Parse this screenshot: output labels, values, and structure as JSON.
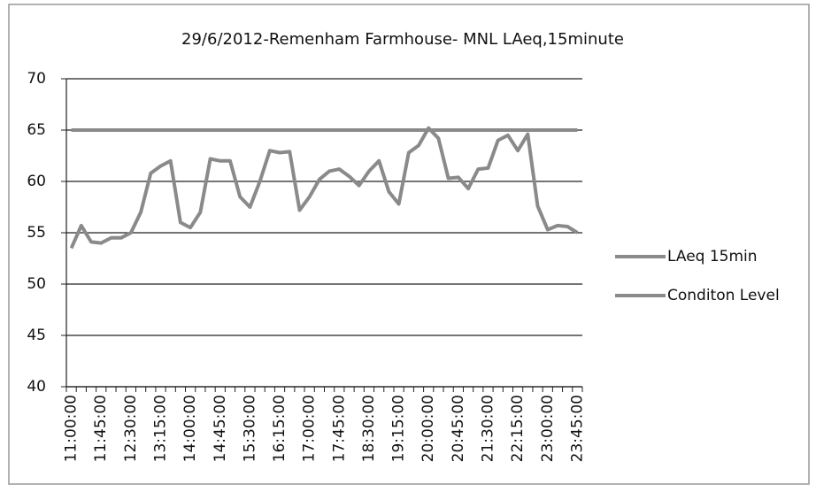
{
  "chart_data": {
    "type": "line",
    "title": "29/6/2012-Remenham Farmhouse- MNL LAeq,15minute",
    "categories": [
      "11:00:00",
      null,
      null,
      "11:45:00",
      null,
      null,
      "12:30:00",
      null,
      null,
      "13:15:00",
      null,
      null,
      "14:00:00",
      null,
      null,
      "14:45:00",
      null,
      null,
      "15:30:00",
      null,
      null,
      "16:15:00",
      null,
      null,
      "17:00:00",
      null,
      null,
      "17:45:00",
      null,
      null,
      "18:30:00",
      null,
      null,
      "19:15:00",
      null,
      null,
      "20:00:00",
      null,
      null,
      "20:45:00",
      null,
      null,
      "21:30:00",
      null,
      null,
      "22:15:00",
      null,
      null,
      "23:00:00",
      null,
      null,
      "23:45:00"
    ],
    "series": [
      {
        "name": "LAeq 15min",
        "color": "#8a8a8a",
        "values": [
          53.5,
          55.7,
          54.1,
          54.0,
          54.5,
          54.5,
          55.0,
          57.0,
          60.8,
          61.5,
          62.0,
          56.0,
          55.5,
          57.0,
          62.2,
          62.0,
          62.0,
          58.5,
          57.5,
          60.0,
          63.0,
          62.8,
          62.9,
          57.2,
          58.5,
          60.2,
          61.0,
          61.2,
          60.5,
          59.6,
          61.0,
          62.0,
          59.0,
          57.8,
          62.8,
          63.5,
          65.2,
          64.2,
          60.3,
          60.4,
          59.3,
          61.2,
          61.3,
          64.0,
          64.5,
          63.0,
          64.6,
          57.6,
          55.3,
          55.7,
          55.6,
          55.0
        ]
      },
      {
        "name": "Conditon Level",
        "color": "#8a8a8a",
        "values": [
          65,
          65,
          65,
          65,
          65,
          65,
          65,
          65,
          65,
          65,
          65,
          65,
          65,
          65,
          65,
          65,
          65,
          65,
          65,
          65,
          65,
          65,
          65,
          65,
          65,
          65,
          65,
          65,
          65,
          65,
          65,
          65,
          65,
          65,
          65,
          65,
          65,
          65,
          65,
          65,
          65,
          65,
          65,
          65,
          65,
          65,
          65,
          65,
          65,
          65,
          65,
          65
        ]
      }
    ],
    "ylim": [
      40,
      70
    ],
    "yticks": [
      40,
      45,
      50,
      55,
      60,
      65,
      70
    ],
    "grid": true,
    "legend": "right"
  }
}
